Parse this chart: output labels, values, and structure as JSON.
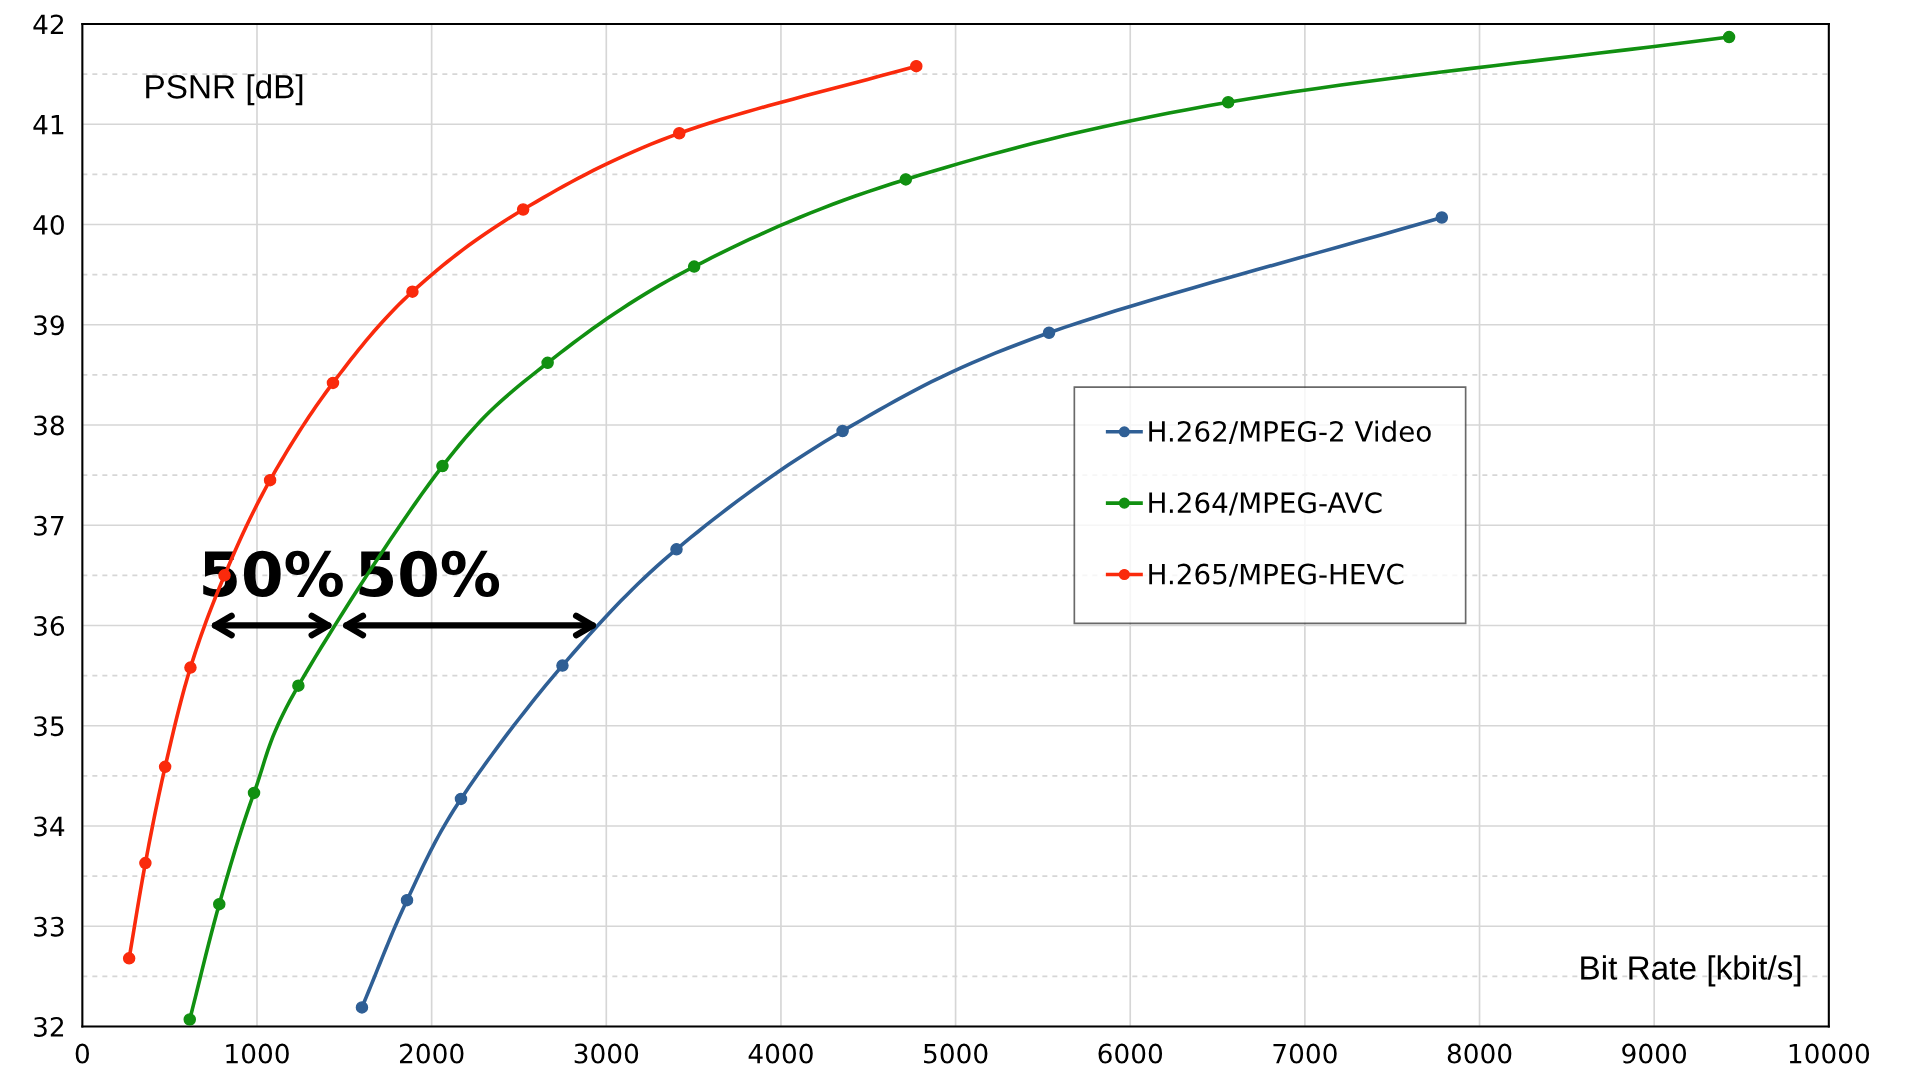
{
  "chart_data": {
    "type": "line",
    "xlabel": "Bit Rate [kbit/s]",
    "ylabel": "PSNR [dB]",
    "series": [
      {
        "name": "H.262/MPEG-2 Video",
        "color": "#2f5f95",
        "x": [
          1601,
          1859,
          2168,
          2749,
          3402,
          4353,
          5535,
          7784
        ],
        "values": [
          32.19,
          33.26,
          34.27,
          35.6,
          36.76,
          37.94,
          38.92,
          40.07
        ]
      },
      {
        "name": "H.264/MPEG-AVC",
        "color": "#119011",
        "x": [
          615,
          784,
          983,
          1237,
          2062,
          2664,
          3503,
          4715,
          6561,
          9429
        ],
        "values": [
          32.07,
          33.22,
          34.33,
          35.4,
          37.59,
          38.62,
          39.58,
          40.45,
          41.22,
          41.87
        ]
      },
      {
        "name": "H.265/MPEG-HEVC",
        "color": "#fa2a0c",
        "x": [
          268,
          361,
          474,
          619,
          814,
          1075,
          1435,
          1890,
          2524,
          3418,
          4775
        ],
        "values": [
          32.68,
          33.63,
          34.59,
          35.58,
          36.5,
          37.45,
          38.42,
          39.33,
          40.15,
          40.91,
          41.58
        ]
      }
    ],
    "annotations": [
      {
        "text": "50%",
        "x": 1460,
        "y": 36
      },
      {
        "text": "50%",
        "x": 1460,
        "y": 36
      }
    ],
    "xlim": [
      0,
      10000
    ],
    "xticks": [
      0,
      1000,
      2000,
      3000,
      4000,
      5000,
      6000,
      7000,
      8000,
      9000,
      10000
    ],
    "ylim": [
      32,
      42
    ],
    "yticks": [
      32,
      {
        "value": 32.5,
        "label": null
      },
      33,
      {
        "value": 33.5,
        "label": null
      },
      34,
      {
        "value": 34.5,
        "label": null
      },
      35,
      {
        "value": 35.5,
        "label": null
      },
      36,
      {
        "value": 36.5,
        "label": null
      },
      37,
      {
        "value": 37.5,
        "label": null
      },
      38,
      {
        "value": 38.5,
        "label": null
      },
      39,
      {
        "value": 39.5,
        "label": null
      },
      40,
      {
        "value": 40.5,
        "label": null
      },
      41,
      {
        "value": 41.5,
        "label": null
      },
      42
    ],
    "grid": true,
    "legend": "right",
    "marker": "circle",
    "line_style": "solid"
  }
}
